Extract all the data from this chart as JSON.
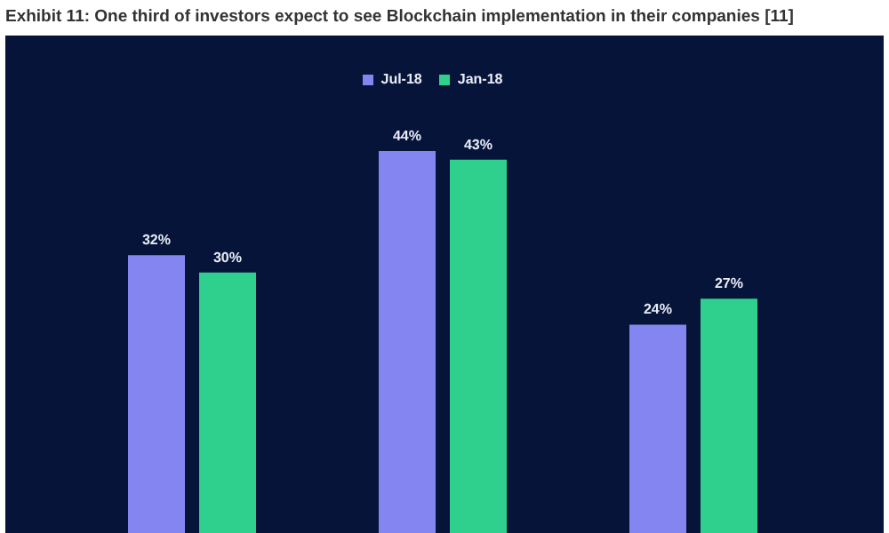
{
  "chart_data": {
    "type": "bar",
    "title": "Exhibit 11: One third of investors expect to see Blockchain implementation in their companies [11]",
    "categories": [
      null,
      null,
      null
    ],
    "series": [
      {
        "name": "Jul-18",
        "color": "#8585f2",
        "values": [
          32,
          44,
          24
        ],
        "value_labels": [
          "32%",
          "44%",
          "24%"
        ]
      },
      {
        "name": "Jan-18",
        "color": "#2fcf8d",
        "values": [
          30,
          43,
          27
        ],
        "value_labels": [
          "30%",
          "43%",
          "27%"
        ]
      }
    ],
    "legend": "top",
    "tick_labels": false,
    "grid": false
  }
}
